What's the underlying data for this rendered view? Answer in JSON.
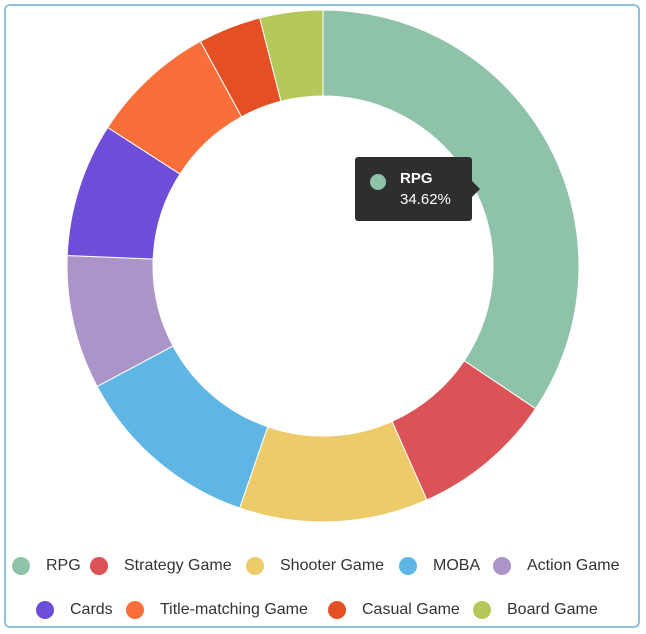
{
  "chart_data": {
    "type": "pie",
    "variant": "donut",
    "categories": [
      "RPG",
      "Strategy Game",
      "Shooter Game",
      "MOBA",
      "Action Game",
      "Cards",
      "Title-matching Game",
      "Casual Game",
      "Board Game"
    ],
    "values": [
      34.62,
      9.0,
      12.0,
      12.0,
      8.5,
      8.5,
      8.0,
      4.0,
      4.0
    ],
    "colors": [
      "#8fc3a9",
      "#dc5357",
      "#eecb69",
      "#5fb6e4",
      "#ab94c8",
      "#6c4ed8",
      "#fa6f39",
      "#e44f24",
      "#b4c95a"
    ],
    "title": "",
    "legend_position": "bottom"
  },
  "tooltip": {
    "name": "RPG",
    "value": "34.62%",
    "color": "#8fc3a9"
  },
  "legend": [
    {
      "label": "RPG",
      "color": "#8fc3a9"
    },
    {
      "label": "Strategy Game",
      "color": "#dc5357"
    },
    {
      "label": "Shooter Game",
      "color": "#eecb69"
    },
    {
      "label": "MOBA",
      "color": "#5fb6e4"
    },
    {
      "label": "Action Game",
      "color": "#ab94c8"
    },
    {
      "label": "Cards",
      "color": "#6c4ed8"
    },
    {
      "label": "Title-matching Game",
      "color": "#fa6f39"
    },
    {
      "label": "Casual Game",
      "color": "#e44f24"
    },
    {
      "label": "Board Game",
      "color": "#b4c95a"
    }
  ]
}
